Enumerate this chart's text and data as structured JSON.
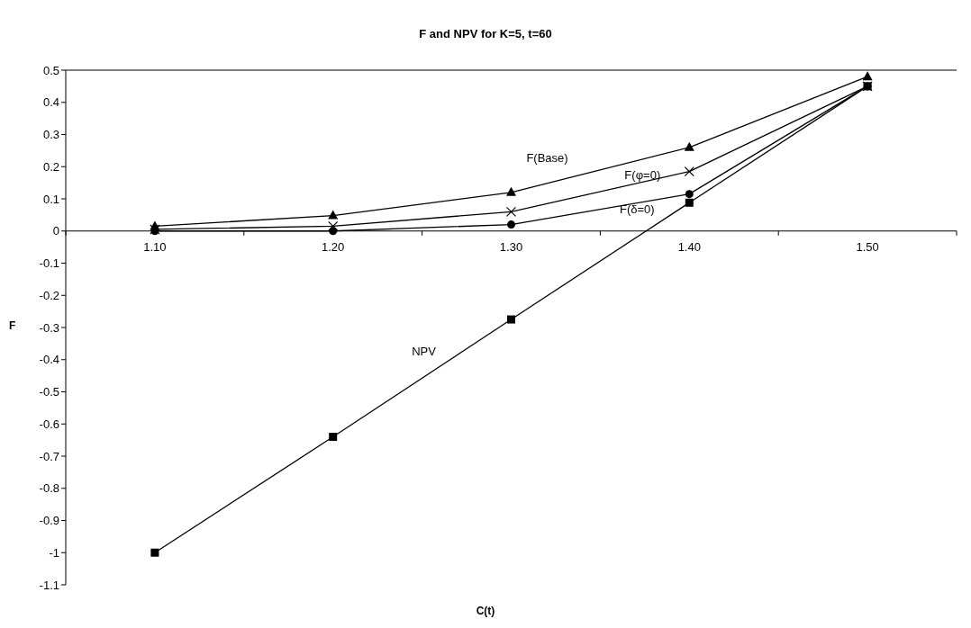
{
  "chart_data": {
    "type": "line",
    "title": "F and NPV for K=5, t=60",
    "xlabel": "C(t)",
    "ylabel": "F",
    "categories": [
      "1.10",
      "1.20",
      "1.30",
      "1.40",
      "1.50"
    ],
    "series": [
      {
        "name": "F(Base)",
        "color": "#000000",
        "marker": "triangle",
        "values": [
          0.015,
          0.048,
          0.12,
          0.26,
          0.48
        ]
      },
      {
        "name": "F(φ=0)",
        "color": "#000000",
        "marker": "cross",
        "values": [
          0.005,
          0.015,
          0.06,
          0.185,
          0.45
        ]
      },
      {
        "name": "F(δ=0)",
        "color": "#000000",
        "marker": "circle",
        "values": [
          0,
          0,
          0.02,
          0.115,
          0.45
        ]
      },
      {
        "name": "NPV",
        "color": "#000000",
        "marker": "square",
        "values": [
          -1.0,
          -0.64,
          -0.275,
          0.088,
          0.45
        ]
      }
    ],
    "ylim": [
      -1.1,
      0.5
    ],
    "yticks": [
      -1.1,
      -1,
      -0.9,
      -0.8,
      -0.7,
      -0.6,
      -0.5,
      -0.4,
      -0.3,
      -0.2,
      -0.1,
      0,
      0.1,
      0.2,
      0.3,
      0.4,
      0.5
    ],
    "line_style": "solid"
  }
}
